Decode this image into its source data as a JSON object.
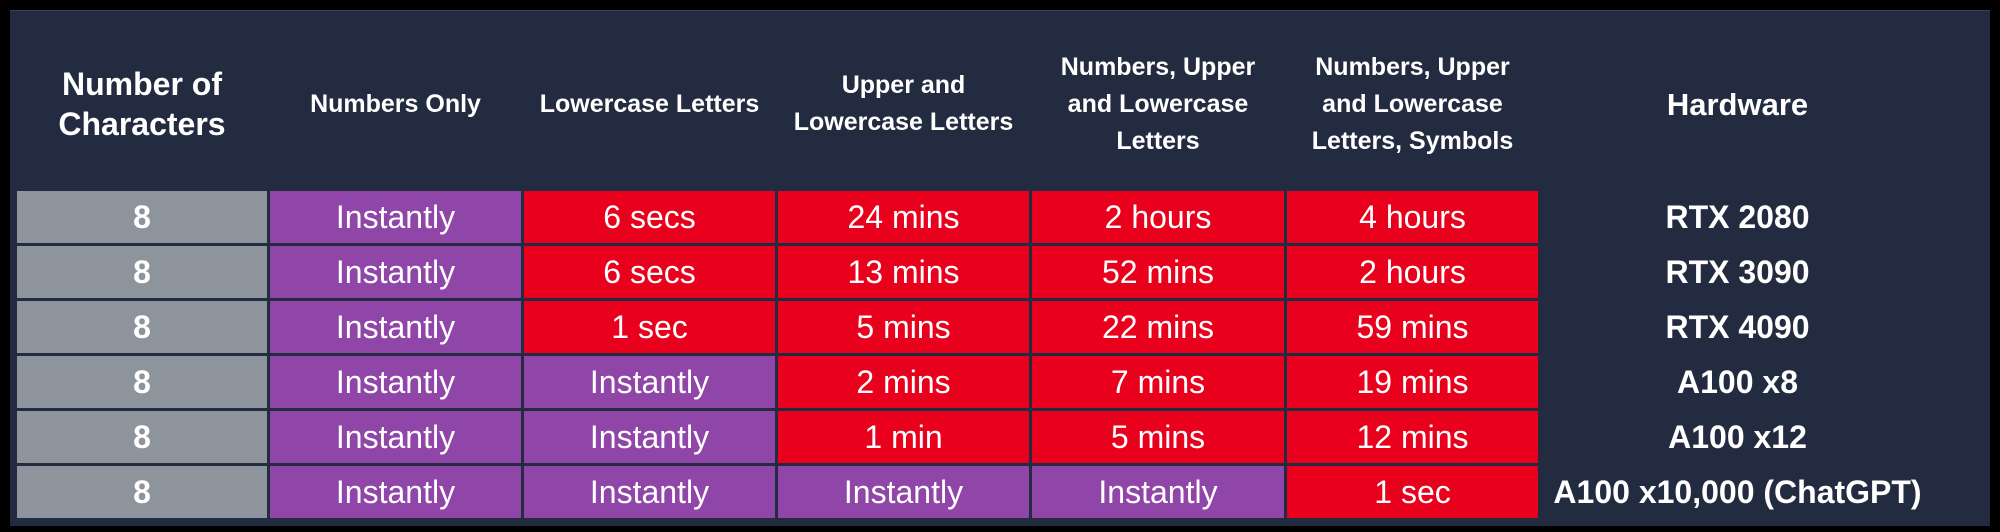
{
  "table": {
    "headers": [
      "Number of Characters",
      "Numbers Only",
      "Lowercase Letters",
      "Upper and Lowercase Letters",
      "Numbers, Upper and Lowercase Letters",
      "Numbers, Upper and Lowercase Letters, Symbols",
      "Hardware"
    ],
    "rows": [
      [
        "8",
        "Instantly",
        "6 secs",
        "24 mins",
        "2 hours",
        "4 hours",
        "RTX 2080"
      ],
      [
        "8",
        "Instantly",
        "6 secs",
        "13 mins",
        "52 mins",
        "2 hours",
        "RTX 3090"
      ],
      [
        "8",
        "Instantly",
        "1 sec",
        "5 mins",
        "22 mins",
        "59 mins",
        "RTX 4090"
      ],
      [
        "8",
        "Instantly",
        "Instantly",
        "2 mins",
        "7 mins",
        "19 mins",
        "A100 x8"
      ],
      [
        "8",
        "Instantly",
        "Instantly",
        "1 min",
        "5 mins",
        "12 mins",
        "A100 x12"
      ],
      [
        "8",
        "Instantly",
        "Instantly",
        "Instantly",
        "Instantly",
        "1 sec",
        "A100 x10,000 (ChatGPT)"
      ]
    ]
  },
  "colors": {
    "background": "#232b40",
    "characters_cell": "#8e949c",
    "instant_cell": "#9046a8",
    "time_cell": "#e8001c",
    "text": "#ffffff"
  }
}
